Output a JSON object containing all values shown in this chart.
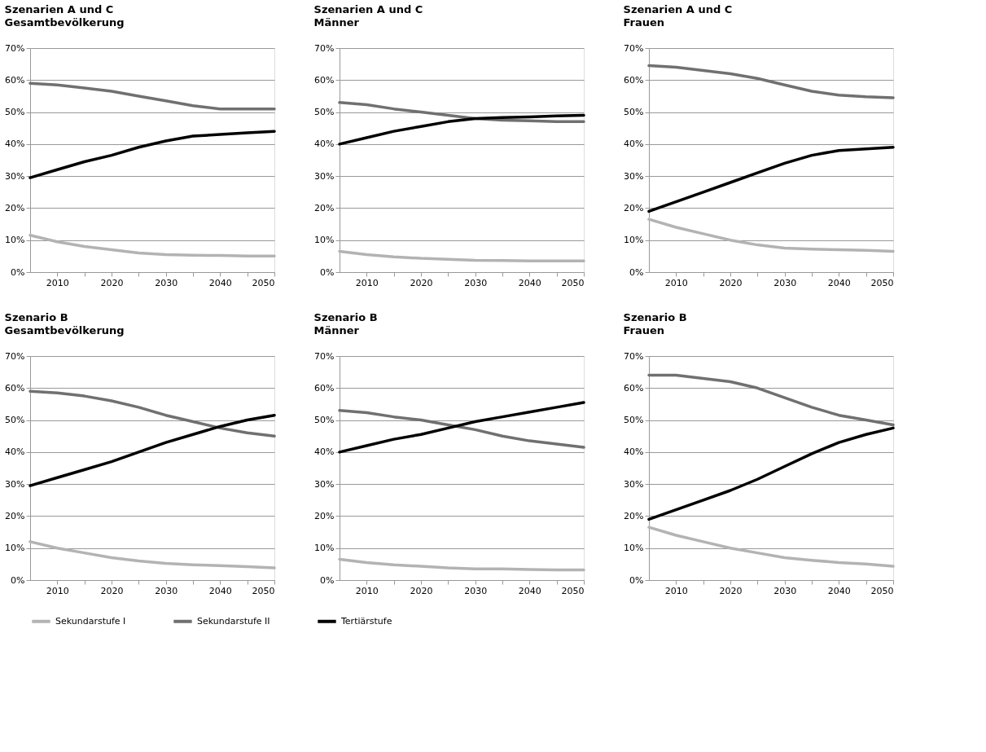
{
  "chart_data": [
    {
      "type": "line",
      "title": "Szenarien A und C",
      "subtitle": "Gesamtbevölkerung",
      "x": [
        2005,
        2010,
        2015,
        2020,
        2025,
        2030,
        2035,
        2040,
        2045,
        2050
      ],
      "xlim": [
        2005,
        2050
      ],
      "xticks": [
        2010,
        {
          "value": 2015,
          "label": null
        },
        2020,
        {
          "value": 2025,
          "label": null
        },
        2030,
        {
          "value": 2035,
          "label": null
        },
        2040,
        {
          "value": 2045,
          "label": null
        },
        2050
      ],
      "ylim": [
        0,
        70
      ],
      "yticks": [
        {
          "value": 0,
          "label": "0%"
        },
        {
          "value": 10,
          "label": "10%"
        },
        {
          "value": 20,
          "label": "20%"
        },
        {
          "value": 30,
          "label": "30%"
        },
        {
          "value": 40,
          "label": "40%"
        },
        {
          "value": 50,
          "label": "50%"
        },
        {
          "value": 60,
          "label": "60%"
        },
        {
          "value": 70,
          "label": "70%"
        }
      ],
      "grid": "y",
      "legend": "bottom",
      "line_style": "solid",
      "series": [
        {
          "name": "Sekundarstufe I",
          "color": "#b3b3b3",
          "values": [
            11.5,
            9.5,
            8,
            7,
            6,
            5.5,
            5.3,
            5.2,
            5,
            5
          ]
        },
        {
          "name": "Sekundarstufe II",
          "color": "#707070",
          "values": [
            59,
            58.5,
            57.5,
            56.5,
            55,
            53.5,
            52,
            51,
            51,
            51
          ]
        },
        {
          "name": "Tertiärstufe",
          "color": "#000000",
          "values": [
            29.5,
            32,
            34.5,
            36.5,
            39,
            41,
            42.5,
            43,
            43.5,
            44
          ]
        }
      ]
    },
    {
      "type": "line",
      "title": "Szenarien A und C",
      "subtitle": "Männer",
      "x": [
        2005,
        2010,
        2015,
        2020,
        2025,
        2030,
        2035,
        2040,
        2045,
        2050
      ],
      "xlim": [
        2005,
        2050
      ],
      "xticks": [
        2010,
        {
          "value": 2015,
          "label": null
        },
        2020,
        {
          "value": 2025,
          "label": null
        },
        2030,
        {
          "value": 2035,
          "label": null
        },
        2040,
        {
          "value": 2045,
          "label": null
        },
        2050
      ],
      "ylim": [
        0,
        70
      ],
      "yticks": [
        {
          "value": 0,
          "label": "0%"
        },
        {
          "value": 10,
          "label": "10%"
        },
        {
          "value": 20,
          "label": "20%"
        },
        {
          "value": 30,
          "label": "30%"
        },
        {
          "value": 40,
          "label": "40%"
        },
        {
          "value": 50,
          "label": "50%"
        },
        {
          "value": 60,
          "label": "60%"
        },
        {
          "value": 70,
          "label": "70%"
        }
      ],
      "grid": "y",
      "legend": "bottom",
      "line_style": "solid",
      "series": [
        {
          "name": "Sekundarstufe I",
          "color": "#b3b3b3",
          "values": [
            6.5,
            5.5,
            4.8,
            4.3,
            4,
            3.7,
            3.6,
            3.5,
            3.5,
            3.5
          ]
        },
        {
          "name": "Sekundarstufe II",
          "color": "#707070",
          "values": [
            53,
            52.3,
            51,
            50,
            49,
            48,
            47.5,
            47.3,
            47,
            47
          ]
        },
        {
          "name": "Tertiärstufe",
          "color": "#000000",
          "values": [
            40,
            42,
            44,
            45.5,
            47,
            48,
            48.3,
            48.5,
            48.8,
            49
          ]
        }
      ]
    },
    {
      "type": "line",
      "title": "Szenarien A und C",
      "subtitle": "Frauen",
      "x": [
        2005,
        2010,
        2015,
        2020,
        2025,
        2030,
        2035,
        2040,
        2045,
        2050
      ],
      "xlim": [
        2005,
        2050
      ],
      "xticks": [
        2010,
        {
          "value": 2015,
          "label": null
        },
        2020,
        {
          "value": 2025,
          "label": null
        },
        2030,
        {
          "value": 2035,
          "label": null
        },
        2040,
        {
          "value": 2045,
          "label": null
        },
        2050
      ],
      "ylim": [
        0,
        70
      ],
      "yticks": [
        {
          "value": 0,
          "label": "0%"
        },
        {
          "value": 10,
          "label": "10%"
        },
        {
          "value": 20,
          "label": "20%"
        },
        {
          "value": 30,
          "label": "30%"
        },
        {
          "value": 40,
          "label": "40%"
        },
        {
          "value": 50,
          "label": "50%"
        },
        {
          "value": 60,
          "label": "60%"
        },
        {
          "value": 70,
          "label": "70%"
        }
      ],
      "grid": "y",
      "legend": "bottom",
      "line_style": "solid",
      "series": [
        {
          "name": "Sekundarstufe I",
          "color": "#b3b3b3",
          "values": [
            16.5,
            14,
            12,
            10,
            8.5,
            7.5,
            7.2,
            7,
            6.8,
            6.5
          ]
        },
        {
          "name": "Sekundarstufe II",
          "color": "#707070",
          "values": [
            64.5,
            64,
            63,
            62,
            60.5,
            58.5,
            56.5,
            55.3,
            54.8,
            54.5
          ]
        },
        {
          "name": "Tertiärstufe",
          "color": "#000000",
          "values": [
            19,
            22,
            25,
            28,
            31,
            34,
            36.5,
            38,
            38.5,
            39
          ]
        }
      ]
    },
    {
      "type": "line",
      "title": "Szenario B",
      "subtitle": "Gesamtbevölkerung",
      "x": [
        2005,
        2010,
        2015,
        2020,
        2025,
        2030,
        2035,
        2040,
        2045,
        2050
      ],
      "xlim": [
        2005,
        2050
      ],
      "xticks": [
        2010,
        {
          "value": 2015,
          "label": null
        },
        2020,
        {
          "value": 2025,
          "label": null
        },
        2030,
        {
          "value": 2035,
          "label": null
        },
        2040,
        {
          "value": 2045,
          "label": null
        },
        2050
      ],
      "ylim": [
        0,
        70
      ],
      "yticks": [
        {
          "value": 0,
          "label": "0%"
        },
        {
          "value": 10,
          "label": "10%"
        },
        {
          "value": 20,
          "label": "20%"
        },
        {
          "value": 30,
          "label": "30%"
        },
        {
          "value": 40,
          "label": "40%"
        },
        {
          "value": 50,
          "label": "50%"
        },
        {
          "value": 60,
          "label": "60%"
        },
        {
          "value": 70,
          "label": "70%"
        }
      ],
      "grid": "y",
      "legend": "bottom",
      "line_style": "solid",
      "series": [
        {
          "name": "Sekundarstufe I",
          "color": "#b3b3b3",
          "values": [
            12,
            10,
            8.5,
            7,
            6,
            5.2,
            4.8,
            4.5,
            4.2,
            3.8
          ]
        },
        {
          "name": "Sekundarstufe II",
          "color": "#707070",
          "values": [
            59,
            58.5,
            57.5,
            56,
            54,
            51.5,
            49.5,
            47.5,
            46,
            45
          ]
        },
        {
          "name": "Tertiärstufe",
          "color": "#000000",
          "values": [
            29.5,
            32,
            34.5,
            37,
            40,
            43,
            45.5,
            48,
            50,
            51.5
          ]
        }
      ]
    },
    {
      "type": "line",
      "title": "Szenario B",
      "subtitle": "Männer",
      "x": [
        2005,
        2010,
        2015,
        2020,
        2025,
        2030,
        2035,
        2040,
        2045,
        2050
      ],
      "xlim": [
        2005,
        2050
      ],
      "xticks": [
        2010,
        {
          "value": 2015,
          "label": null
        },
        2020,
        {
          "value": 2025,
          "label": null
        },
        2030,
        {
          "value": 2035,
          "label": null
        },
        2040,
        {
          "value": 2045,
          "label": null
        },
        2050
      ],
      "ylim": [
        0,
        70
      ],
      "yticks": [
        {
          "value": 0,
          "label": "0%"
        },
        {
          "value": 10,
          "label": "10%"
        },
        {
          "value": 20,
          "label": "20%"
        },
        {
          "value": 30,
          "label": "30%"
        },
        {
          "value": 40,
          "label": "40%"
        },
        {
          "value": 50,
          "label": "50%"
        },
        {
          "value": 60,
          "label": "60%"
        },
        {
          "value": 70,
          "label": "70%"
        }
      ],
      "grid": "y",
      "legend": "bottom",
      "line_style": "solid",
      "series": [
        {
          "name": "Sekundarstufe I",
          "color": "#b3b3b3",
          "values": [
            6.5,
            5.5,
            4.8,
            4.3,
            3.8,
            3.5,
            3.5,
            3.3,
            3.2,
            3.2
          ]
        },
        {
          "name": "Sekundarstufe II",
          "color": "#707070",
          "values": [
            53,
            52.3,
            51,
            50,
            48.5,
            47,
            45,
            43.5,
            42.5,
            41.5
          ]
        },
        {
          "name": "Tertiärstufe",
          "color": "#000000",
          "values": [
            40,
            42,
            44,
            45.5,
            47.5,
            49.5,
            51,
            52.5,
            54,
            55.5
          ]
        }
      ]
    },
    {
      "type": "line",
      "title": "Szenario B",
      "subtitle": "Frauen",
      "x": [
        2005,
        2010,
        2015,
        2020,
        2025,
        2030,
        2035,
        2040,
        2045,
        2050
      ],
      "xlim": [
        2005,
        2050
      ],
      "xticks": [
        2010,
        {
          "value": 2015,
          "label": null
        },
        2020,
        {
          "value": 2025,
          "label": null
        },
        2030,
        {
          "value": 2035,
          "label": null
        },
        2040,
        {
          "value": 2045,
          "label": null
        },
        2050
      ],
      "ylim": [
        0,
        70
      ],
      "yticks": [
        {
          "value": 0,
          "label": "0%"
        },
        {
          "value": 10,
          "label": "10%"
        },
        {
          "value": 20,
          "label": "20%"
        },
        {
          "value": 30,
          "label": "30%"
        },
        {
          "value": 40,
          "label": "40%"
        },
        {
          "value": 50,
          "label": "50%"
        },
        {
          "value": 60,
          "label": "60%"
        },
        {
          "value": 70,
          "label": "70%"
        }
      ],
      "grid": "y",
      "legend": "bottom",
      "line_style": "solid",
      "series": [
        {
          "name": "Sekundarstufe I",
          "color": "#b3b3b3",
          "values": [
            16.5,
            14,
            12,
            10,
            8.5,
            7,
            6.2,
            5.5,
            5,
            4.3
          ]
        },
        {
          "name": "Sekundarstufe II",
          "color": "#707070",
          "values": [
            64,
            64,
            63,
            62,
            60,
            57,
            54,
            51.5,
            50,
            48.5
          ]
        },
        {
          "name": "Tertiärstufe",
          "color": "#000000",
          "values": [
            19,
            22,
            25,
            28,
            31.5,
            35.5,
            39.5,
            43,
            45.5,
            47.5
          ]
        }
      ]
    }
  ]
}
